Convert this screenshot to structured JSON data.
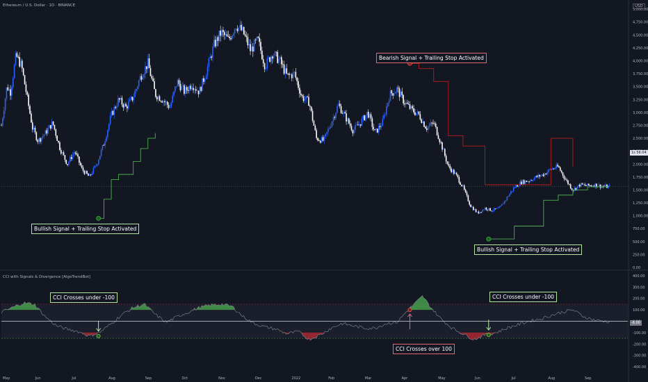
{
  "header": {
    "symbol": "Ethereum / U.S. Dollar · 1D · BINANCE",
    "currency": "USD",
    "indicator": "CCI with Signals & Divergence [AlgoTrendBot]"
  },
  "colors": {
    "background": "#131722",
    "up": "#2962ff",
    "down": "#ffffff",
    "trail_long": "#4caf50",
    "trail_short": "#b71c1c",
    "cci_pos_fill": "#4caf50",
    "cci_neg_fill": "#b22833",
    "cci_line": "#787b86"
  },
  "price_axis": {
    "ticks": [
      "5,000.00",
      "4,750.00",
      "4,500.00",
      "4,250.00",
      "4,000.00",
      "3,750.00",
      "3,500.00",
      "3,250.00",
      "3,000.00",
      "2,750.00",
      "2,500.00",
      "2,250.00",
      "2,000.00",
      "1,750.00",
      "1,500.00",
      "1,250.00",
      "1,000.00",
      "750.00",
      "500.00",
      "250.00",
      "0.00"
    ],
    "current_label": "1s 56:04"
  },
  "cci_axis": {
    "ticks": [
      "400.00",
      "300.00",
      "200.00",
      "100.00",
      "0.00",
      "-100.00",
      "-200.00",
      "-300.00",
      "-400.00"
    ],
    "current": "-6.00"
  },
  "time_axis": [
    "May",
    "Jun",
    "Jul",
    "Aug",
    "Sep",
    "Oct",
    "Nov",
    "Dec",
    "2022",
    "Feb",
    "Mar",
    "Apr",
    "May",
    "Jun",
    "Jul",
    "Aug",
    "Sep"
  ],
  "annotations": {
    "bull1": "Bullish Signal + Trailing Stop Activated",
    "bear1": "Bearish Signal + Trailing Stop Activated",
    "bull2": "Bullish Signal + Trailing Stop Activated",
    "cci_under1": "CCI Crosses under -100",
    "cci_over": "CCI Crosses over 100",
    "cci_under2": "CCI Crosses under -100"
  },
  "chart_data": [
    {
      "type": "candlestick",
      "title": "Ethereum / U.S. Dollar · 1D · BINANCE",
      "ylim": [
        0,
        5000
      ],
      "x_unit": "month",
      "x_start": "May 2021",
      "x_end": "Sep 2022",
      "close_series": {
        "x": [
          0,
          0.15,
          0.25,
          0.4,
          0.55,
          0.7,
          0.85,
          1.0,
          1.2,
          1.4,
          1.6,
          1.8,
          2.0,
          2.2,
          2.4,
          2.6,
          2.8,
          3.0,
          3.2,
          3.4,
          3.6,
          3.8,
          4.0,
          4.2,
          4.4,
          4.6,
          4.8,
          5.0,
          5.2,
          5.4,
          5.6,
          5.8,
          6.0,
          6.2,
          6.4,
          6.6,
          6.8,
          7.0,
          7.2,
          7.4,
          7.6,
          7.8,
          8.0,
          8.2,
          8.4,
          8.6,
          8.8,
          9.0,
          9.2,
          9.4,
          9.6,
          9.8,
          10.0,
          10.2,
          10.4,
          10.6,
          10.8,
          11.0,
          11.2,
          11.4,
          11.6,
          11.8,
          12.0,
          12.2,
          12.4,
          12.6,
          12.8,
          13.0,
          13.2,
          13.4,
          13.6,
          13.8,
          14.0,
          14.2,
          14.4,
          14.6,
          14.8,
          15.0,
          15.2,
          15.4,
          15.6,
          15.8,
          16.0,
          16.2,
          16.4,
          16.6
        ],
        "close": [
          2750,
          3500,
          3400,
          4100,
          3900,
          3300,
          2700,
          2450,
          2600,
          2800,
          2300,
          2000,
          2250,
          1900,
          1750,
          2000,
          2400,
          2950,
          3250,
          3100,
          3300,
          3700,
          3950,
          3350,
          3250,
          3100,
          3600,
          3400,
          3550,
          3400,
          3800,
          4300,
          4550,
          4400,
          4700,
          4550,
          4200,
          4400,
          3900,
          4150,
          4000,
          3700,
          3750,
          3300,
          3200,
          2500,
          2450,
          2800,
          3150,
          2900,
          2650,
          2800,
          3000,
          2600,
          2800,
          3350,
          3450,
          3200,
          3050,
          2950,
          2700,
          2800,
          2400,
          1950,
          1800,
          1550,
          1200,
          1050,
          1150,
          1100,
          1150,
          1350,
          1550,
          1650,
          1680,
          1750,
          1800,
          1900,
          1950,
          1700,
          1500,
          1600,
          1580,
          1600,
          1570,
          1560
        ],
        "current": 1570
      },
      "trailing_stop_long_1": {
        "x": [
          2.6,
          2.8,
          3.0,
          3.2,
          3.6,
          3.8,
          4.0,
          4.2
        ],
        "y": [
          950,
          1320,
          1700,
          1800,
          2050,
          2300,
          2500,
          2600
        ]
      },
      "trailing_stop_short": {
        "x": [
          11.15,
          11.4,
          11.8,
          12.2,
          12.6,
          13.2,
          14.0,
          15.0,
          15.6
        ],
        "y": [
          3950,
          3850,
          3600,
          2550,
          2350,
          1600,
          1600,
          2500,
          1950
        ]
      },
      "trailing_stop_long_2": {
        "x": [
          13.3,
          14.0,
          14.8,
          15.2,
          15.6,
          16.0,
          16.6
        ],
        "y": [
          550,
          800,
          1300,
          1400,
          1500,
          1560,
          1560
        ]
      },
      "signals": [
        {
          "type": "bullish",
          "x": 2.65,
          "y": 950,
          "label": "Bullish Signal + Trailing Stop Activated"
        },
        {
          "type": "bearish",
          "x": 11.15,
          "y": 3950,
          "label": "Bearish Signal + Trailing Stop Activated"
        },
        {
          "type": "bullish",
          "x": 13.3,
          "y": 550,
          "label": "Bullish Signal + Trailing Stop Activated"
        }
      ]
    },
    {
      "type": "area",
      "title": "CCI with Signals & Divergence [AlgoTrendBot]",
      "ylim": [
        -400,
        400
      ],
      "levels": [
        -100,
        100
      ],
      "x": [
        0,
        0.3,
        0.6,
        0.9,
        1.2,
        1.5,
        1.8,
        2.1,
        2.4,
        2.7,
        3.0,
        3.3,
        3.6,
        3.9,
        4.2,
        4.5,
        4.8,
        5.1,
        5.4,
        5.7,
        6.0,
        6.3,
        6.6,
        6.9,
        7.2,
        7.5,
        7.8,
        8.1,
        8.4,
        8.7,
        9.0,
        9.3,
        9.6,
        9.9,
        10.2,
        10.5,
        10.8,
        11.1,
        11.3,
        11.5,
        11.7,
        12.0,
        12.3,
        12.6,
        12.9,
        13.2,
        13.5,
        13.8,
        14.1,
        14.4,
        14.7,
        15.0,
        15.3,
        15.6,
        15.9,
        16.2,
        16.6
      ],
      "values": [
        80,
        120,
        160,
        150,
        40,
        -40,
        -70,
        -90,
        -130,
        -95,
        -20,
        60,
        120,
        150,
        60,
        -10,
        40,
        80,
        120,
        140,
        150,
        130,
        40,
        -20,
        -50,
        -70,
        -110,
        -90,
        -160,
        -120,
        -60,
        -20,
        -40,
        -60,
        -60,
        -20,
        -10,
        100,
        160,
        220,
        130,
        20,
        -60,
        -110,
        -160,
        -120,
        -100,
        -60,
        -30,
        0,
        20,
        50,
        80,
        100,
        40,
        10,
        -6
      ],
      "signals": [
        {
          "x": 2.65,
          "y": -130,
          "label": "CCI Crosses under -100"
        },
        {
          "x": 11.15,
          "y": 100,
          "label": "CCI Crosses over 100"
        },
        {
          "x": 13.3,
          "y": -120,
          "label": "CCI Crosses under -100"
        }
      ]
    }
  ]
}
